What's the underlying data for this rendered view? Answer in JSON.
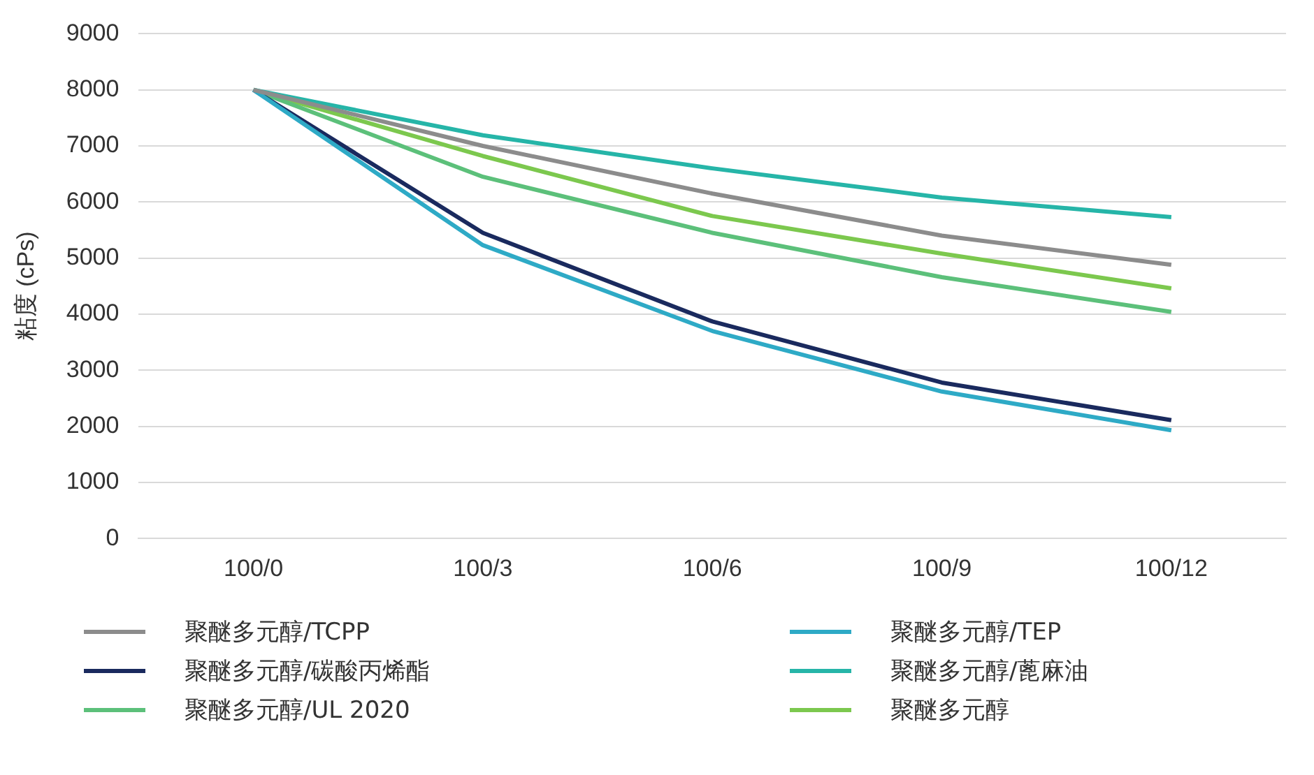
{
  "chart_data": {
    "type": "line",
    "ylabel": "粘度 (cPs)",
    "categories": [
      "100/0",
      "100/3",
      "100/6",
      "100/9",
      "100/12"
    ],
    "ylim": [
      0,
      9000
    ],
    "yticks": [
      0,
      1000,
      2000,
      3000,
      4000,
      5000,
      6000,
      7000,
      8000,
      9000
    ],
    "grid": "y",
    "legend": "bottom",
    "marker": "none",
    "series": [
      {
        "name": "聚醚多元醇/TCPP",
        "color": "#8c8c8c",
        "values": [
          8000,
          7000,
          6150,
          5400,
          4880
        ]
      },
      {
        "name": "聚醚多元醇/TEP",
        "color": "#2eaac6",
        "values": [
          8000,
          5230,
          3700,
          2620,
          1930
        ]
      },
      {
        "name": "聚醚多元醇/碳酸丙烯酯",
        "color": "#1a2a5e",
        "values": [
          8000,
          5450,
          3870,
          2780,
          2110
        ]
      },
      {
        "name": "聚醚多元醇/蓖麻油",
        "color": "#26b5a8",
        "values": [
          8000,
          7190,
          6600,
          6080,
          5730
        ]
      },
      {
        "name": "聚醚多元醇/UL 2020",
        "color": "#5cc07a",
        "values": [
          8000,
          6450,
          5450,
          4660,
          4040
        ]
      },
      {
        "name": "聚醚多元醇",
        "color": "#7cc84e",
        "values": [
          8000,
          6820,
          5750,
          5080,
          4460
        ]
      }
    ]
  }
}
